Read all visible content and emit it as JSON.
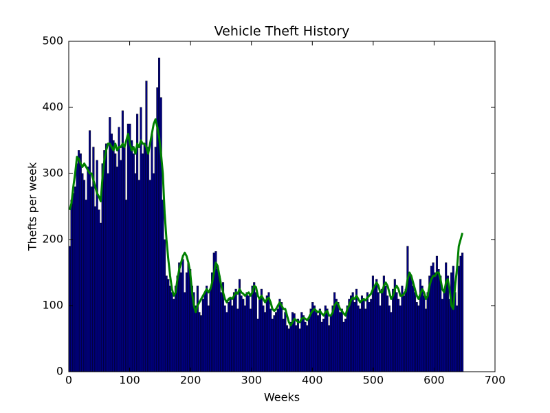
{
  "chart_data": {
    "type": "bar",
    "title": "Vehicle Theft History",
    "xlabel": "Weeks",
    "ylabel": "Thefts per week",
    "xlim": [
      0,
      700
    ],
    "xticks": [
      0,
      100,
      200,
      300,
      400,
      500,
      600,
      700
    ],
    "ylim": [
      0,
      500
    ],
    "yticks": [
      0,
      100,
      200,
      300,
      400,
      500
    ],
    "grid": false,
    "bar_width": 3,
    "x": [
      0,
      3,
      6,
      9,
      12,
      15,
      18,
      21,
      24,
      27,
      30,
      33,
      36,
      39,
      42,
      45,
      48,
      51,
      54,
      57,
      60,
      63,
      66,
      69,
      72,
      75,
      78,
      81,
      84,
      87,
      90,
      93,
      96,
      99,
      102,
      105,
      108,
      111,
      114,
      117,
      120,
      123,
      126,
      129,
      132,
      135,
      138,
      141,
      144,
      147,
      150,
      153,
      156,
      159,
      162,
      165,
      168,
      171,
      174,
      177,
      180,
      183,
      186,
      189,
      192,
      195,
      198,
      201,
      204,
      207,
      210,
      213,
      216,
      219,
      222,
      225,
      228,
      231,
      234,
      237,
      240,
      243,
      246,
      249,
      252,
      255,
      258,
      261,
      264,
      267,
      270,
      273,
      276,
      279,
      282,
      285,
      288,
      291,
      294,
      297,
      300,
      303,
      306,
      309,
      312,
      315,
      318,
      321,
      324,
      327,
      330,
      333,
      336,
      339,
      342,
      345,
      348,
      351,
      354,
      357,
      360,
      363,
      366,
      369,
      372,
      375,
      378,
      381,
      384,
      387,
      390,
      393,
      396,
      399,
      402,
      405,
      408,
      411,
      414,
      417,
      420,
      423,
      426,
      429,
      432,
      435,
      438,
      441,
      444,
      447,
      450,
      453,
      456,
      459,
      462,
      465,
      468,
      471,
      474,
      477,
      480,
      483,
      486,
      489,
      492,
      495,
      498,
      501,
      504,
      507,
      510,
      513,
      516,
      519,
      522,
      525,
      528,
      531,
      534,
      537,
      540,
      543,
      546,
      549,
      552,
      555,
      558,
      561,
      564,
      567,
      570,
      573,
      576,
      579,
      582,
      585,
      588,
      591,
      594,
      597,
      600,
      603,
      606,
      609,
      612,
      615,
      618,
      621,
      624,
      627,
      630,
      633,
      636,
      639,
      642,
      645
    ],
    "series": [
      {
        "type": "bar",
        "color": "#000080",
        "values": [
          190,
          260,
          270,
          280,
          315,
          335,
          330,
          300,
          290,
          260,
          310,
          365,
          280,
          340,
          250,
          320,
          245,
          225,
          315,
          335,
          345,
          300,
          385,
          360,
          350,
          330,
          310,
          370,
          320,
          395,
          340,
          260,
          375,
          375,
          350,
          330,
          300,
          390,
          290,
          400,
          330,
          345,
          440,
          340,
          290,
          360,
          300,
          340,
          430,
          475,
          415,
          260,
          200,
          145,
          140,
          130,
          120,
          110,
          130,
          145,
          165,
          150,
          170,
          120,
          150,
          165,
          155,
          130,
          120,
          100,
          130,
          90,
          85,
          110,
          120,
          130,
          100,
          125,
          150,
          180,
          182,
          155,
          145,
          120,
          135,
          100,
          90,
          105,
          110,
          100,
          120,
          125,
          95,
          140,
          115,
          110,
          100,
          120,
          115,
          95,
          130,
          135,
          120,
          80,
          110,
          125,
          100,
          90,
          115,
          120,
          95,
          80,
          85,
          90,
          95,
          110,
          105,
          80,
          90,
          70,
          65,
          75,
          90,
          88,
          70,
          80,
          65,
          90,
          85,
          75,
          70,
          80,
          95,
          105,
          100,
          90,
          85,
          95,
          75,
          80,
          100,
          95,
          70,
          85,
          100,
          120,
          110,
          105,
          90,
          95,
          75,
          80,
          100,
          110,
          115,
          120,
          105,
          125,
          100,
          95,
          115,
          110,
          95,
          120,
          105,
          110,
          145,
          130,
          140,
          120,
          100,
          125,
          145,
          130,
          115,
          100,
          90,
          125,
          140,
          120,
          110,
          100,
          130,
          115,
          125,
          190,
          150,
          145,
          130,
          120,
          105,
          100,
          140,
          130,
          115,
          95,
          120,
          145,
          160,
          165,
          150,
          175,
          155,
          145,
          110,
          125,
          165,
          145,
          110,
          150,
          160,
          120,
          100,
          160,
          175,
          180
        ]
      },
      {
        "type": "line",
        "color": "#008000",
        "values": [
          245,
          255,
          280,
          300,
          325,
          322,
          315,
          310,
          315,
          310,
          305,
          300,
          300,
          290,
          280,
          270,
          265,
          258,
          295,
          320,
          335,
          345,
          345,
          340,
          335,
          345,
          335,
          340,
          340,
          345,
          340,
          350,
          360,
          345,
          335,
          340,
          330,
          345,
          340,
          350,
          345,
          345,
          340,
          330,
          345,
          360,
          375,
          382,
          370,
          355,
          330,
          300,
          240,
          200,
          170,
          145,
          125,
          115,
          120,
          140,
          155,
          165,
          175,
          180,
          175,
          165,
          150,
          120,
          100,
          90,
          100,
          105,
          110,
          115,
          120,
          125,
          120,
          125,
          135,
          150,
          165,
          160,
          145,
          130,
          120,
          110,
          105,
          110,
          112,
          110,
          115,
          120,
          118,
          125,
          120,
          118,
          115,
          118,
          120,
          115,
          120,
          130,
          128,
          115,
          110,
          115,
          110,
          105,
          110,
          112,
          105,
          95,
          92,
          95,
          100,
          105,
          100,
          95,
          95,
          85,
          75,
          70,
          75,
          80,
          78,
          75,
          75,
          80,
          82,
          80,
          78,
          82,
          88,
          92,
          95,
          92,
          90,
          92,
          88,
          85,
          90,
          92,
          85,
          85,
          90,
          100,
          105,
          102,
          95,
          92,
          88,
          85,
          95,
          100,
          108,
          112,
          110,
          115,
          110,
          105,
          108,
          110,
          108,
          112,
          115,
          118,
          125,
          130,
          135,
          130,
          120,
          120,
          130,
          135,
          130,
          120,
          110,
          115,
          125,
          130,
          125,
          115,
          115,
          118,
          122,
          140,
          150,
          145,
          135,
          125,
          115,
          110,
          118,
          125,
          120,
          110,
          115,
          130,
          140,
          145,
          145,
          150,
          150,
          140,
          125,
          120,
          135,
          140,
          125,
          100,
          95,
          130,
          155,
          190,
          200,
          210
        ]
      }
    ]
  }
}
